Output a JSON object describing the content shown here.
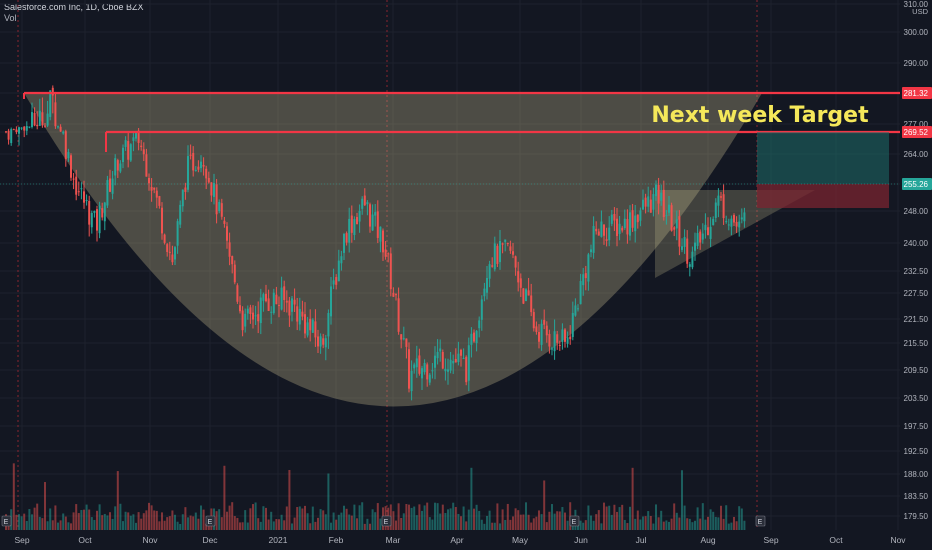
{
  "header": {
    "symbol_line": "Salesforce.com Inc, 1D, Cboe BZX",
    "vol_label": "Vol"
  },
  "currency": "USD",
  "colors": {
    "background": "#131722",
    "up": "#26a69a",
    "down": "#ef5350",
    "resistance_line": "#f23645",
    "cup_fill": "#c9bf8f",
    "target_text": "#f5e85a",
    "target_zone": "#1e6b67",
    "stop_zone": "#7a2430"
  },
  "chart_data": {
    "type": "candlestick",
    "title": "Salesforce.com Inc, 1D, Cboe BZX",
    "annotation": "Next week Target",
    "x_tick_labels": [
      "Sep",
      "Oct",
      "Nov",
      "Dec",
      "2021",
      "Feb",
      "Mar",
      "Apr",
      "May",
      "Jun",
      "Jul",
      "Aug",
      "Sep",
      "Oct",
      "Nov"
    ],
    "y_tick_labels": [
      "310.00",
      "300.00",
      "290.00",
      "281.32",
      "277.00",
      "269.52",
      "264.00",
      "255.26",
      "248.00",
      "240.00",
      "232.50",
      "227.50",
      "221.50",
      "215.50",
      "209.50",
      "203.50",
      "197.50",
      "192.50",
      "188.00",
      "183.50",
      "179.50"
    ],
    "y_axis_unit": "USD",
    "resistance_levels": [
      281.32,
      269.52
    ],
    "last_price": 255.26,
    "target_zone": [
      269.52,
      255.26
    ],
    "stop_zone": [
      255.26,
      248.8
    ],
    "close_path": [
      [
        "Sep",
        270
      ],
      [
        "Sep",
        280
      ],
      [
        "Sep",
        256
      ],
      [
        "Oct",
        244
      ],
      [
        "Oct",
        262
      ],
      [
        "Oct",
        268
      ],
      [
        "Nov",
        250
      ],
      [
        "Nov",
        235
      ],
      [
        "Nov",
        260
      ],
      [
        "Nov",
        264
      ],
      [
        "Dec",
        245
      ],
      [
        "Dec",
        220
      ],
      [
        "Dec",
        226
      ],
      [
        "2021",
        225
      ],
      [
        "2021",
        215
      ],
      [
        "Feb",
        243
      ],
      [
        "Feb",
        250
      ],
      [
        "Feb",
        240
      ],
      [
        "Mar",
        208
      ],
      [
        "Mar",
        213
      ],
      [
        "Apr",
        210
      ],
      [
        "Apr",
        236
      ],
      [
        "Apr",
        238
      ],
      [
        "May",
        219
      ],
      [
        "May",
        215
      ],
      [
        "Jun",
        243
      ],
      [
        "Jun",
        245
      ],
      [
        "Jul",
        252
      ],
      [
        "Jul",
        236
      ],
      [
        "Aug",
        251
      ],
      [
        "Aug",
        243
      ],
      [
        "Aug",
        255
      ]
    ]
  }
}
